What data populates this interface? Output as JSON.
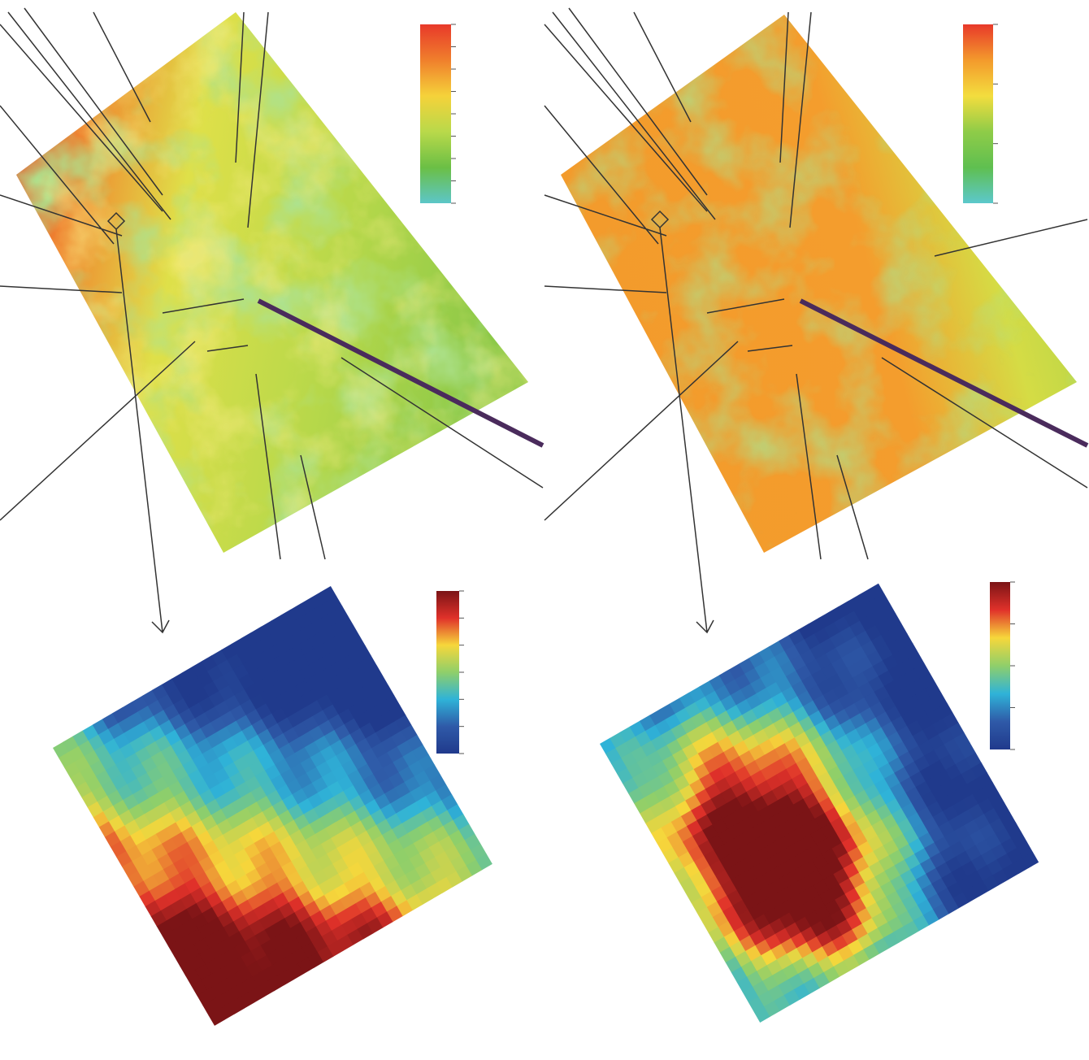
{
  "colorbars": [
    {
      "colors": [
        "#e8392a",
        "#f07f2c",
        "#f5d23a",
        "#b9d94a",
        "#6bbf45",
        "#5cc6c8"
      ]
    },
    {
      "colors": [
        "#e8392a",
        "#f39a2c",
        "#f3dd3e",
        "#8fcc48",
        "#5fbf50",
        "#5cc8cc"
      ]
    },
    {
      "colors": [
        "#7b1416",
        "#e0312a",
        "#f6d73b",
        "#8fcf6a",
        "#2fb3d8",
        "#2f5aa8",
        "#203a8c"
      ]
    },
    {
      "colors": [
        "#7b1416",
        "#e0312a",
        "#f6d73b",
        "#8fcf6a",
        "#2fb3d8",
        "#2f5aa8",
        "#203a8c"
      ]
    }
  ]
}
